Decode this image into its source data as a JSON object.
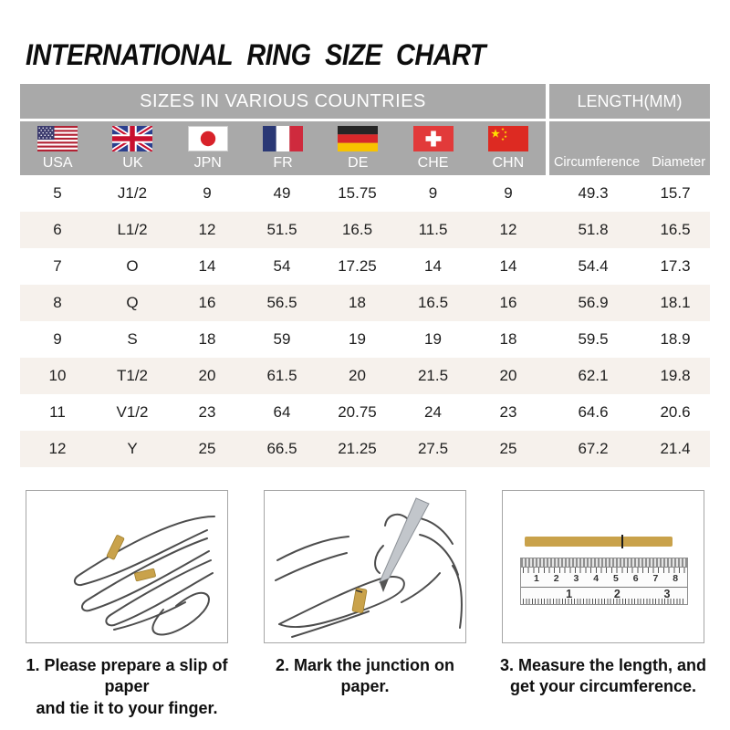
{
  "chart_data": {
    "type": "table",
    "title": "INTERNATIONAL RING SIZE CHART",
    "column_groups": [
      "SIZES IN VARIOUS COUNTRIES",
      "LENGTH(MM)"
    ],
    "columns": [
      "USA",
      "UK",
      "JPN",
      "FR",
      "DE",
      "CHE",
      "CHN",
      "Circumference",
      "Diameter"
    ],
    "rows": [
      [
        "5",
        "J1/2",
        "9",
        "49",
        "15.75",
        "9",
        "9",
        "49.3",
        "15.7"
      ],
      [
        "6",
        "L1/2",
        "12",
        "51.5",
        "16.5",
        "11.5",
        "12",
        "51.8",
        "16.5"
      ],
      [
        "7",
        "O",
        "14",
        "54",
        "17.25",
        "14",
        "14",
        "54.4",
        "17.3"
      ],
      [
        "8",
        "Q",
        "16",
        "56.5",
        "18",
        "16.5",
        "16",
        "56.9",
        "18.1"
      ],
      [
        "9",
        "S",
        "18",
        "59",
        "19",
        "19",
        "18",
        "59.5",
        "18.9"
      ],
      [
        "10",
        "T1/2",
        "20",
        "61.5",
        "20",
        "21.5",
        "20",
        "62.1",
        "19.8"
      ],
      [
        "11",
        "V1/2",
        "23",
        "64",
        "20.75",
        "24",
        "23",
        "64.6",
        "20.6"
      ],
      [
        "12",
        "Y",
        "25",
        "66.5",
        "21.25",
        "27.5",
        "25",
        "67.2",
        "21.4"
      ]
    ]
  },
  "flag_icons": [
    "usa-flag-icon",
    "uk-flag-icon",
    "japan-flag-icon",
    "france-flag-icon",
    "germany-flag-icon",
    "switzerland-flag-icon",
    "china-flag-icon"
  ],
  "steps": [
    {
      "caption_line1": "1. Please prepare a slip of paper",
      "caption_line2": "and tie it to your finger.",
      "illustration_icon": "hand-with-paper-slip-illustration"
    },
    {
      "caption_line1": "2. Mark the junction on paper.",
      "caption_line2": "",
      "illustration_icon": "pen-marking-junction-illustration"
    },
    {
      "caption_line1": "3. Measure the length, and",
      "caption_line2": "get your circumference.",
      "illustration_icon": "ruler-measure-illustration"
    }
  ],
  "ruler": {
    "cm_numbers": [
      "1",
      "2",
      "3",
      "4",
      "5",
      "6",
      "7",
      "8"
    ],
    "inch_numbers": [
      "1",
      "2",
      "3"
    ]
  },
  "colors": {
    "header_gray": "#a9a9a9",
    "row_alt_beige": "#f6f1ec",
    "paper_gold": "#c9a24b",
    "header_text": "#ffffff",
    "body_text": "#1e1e1e"
  }
}
